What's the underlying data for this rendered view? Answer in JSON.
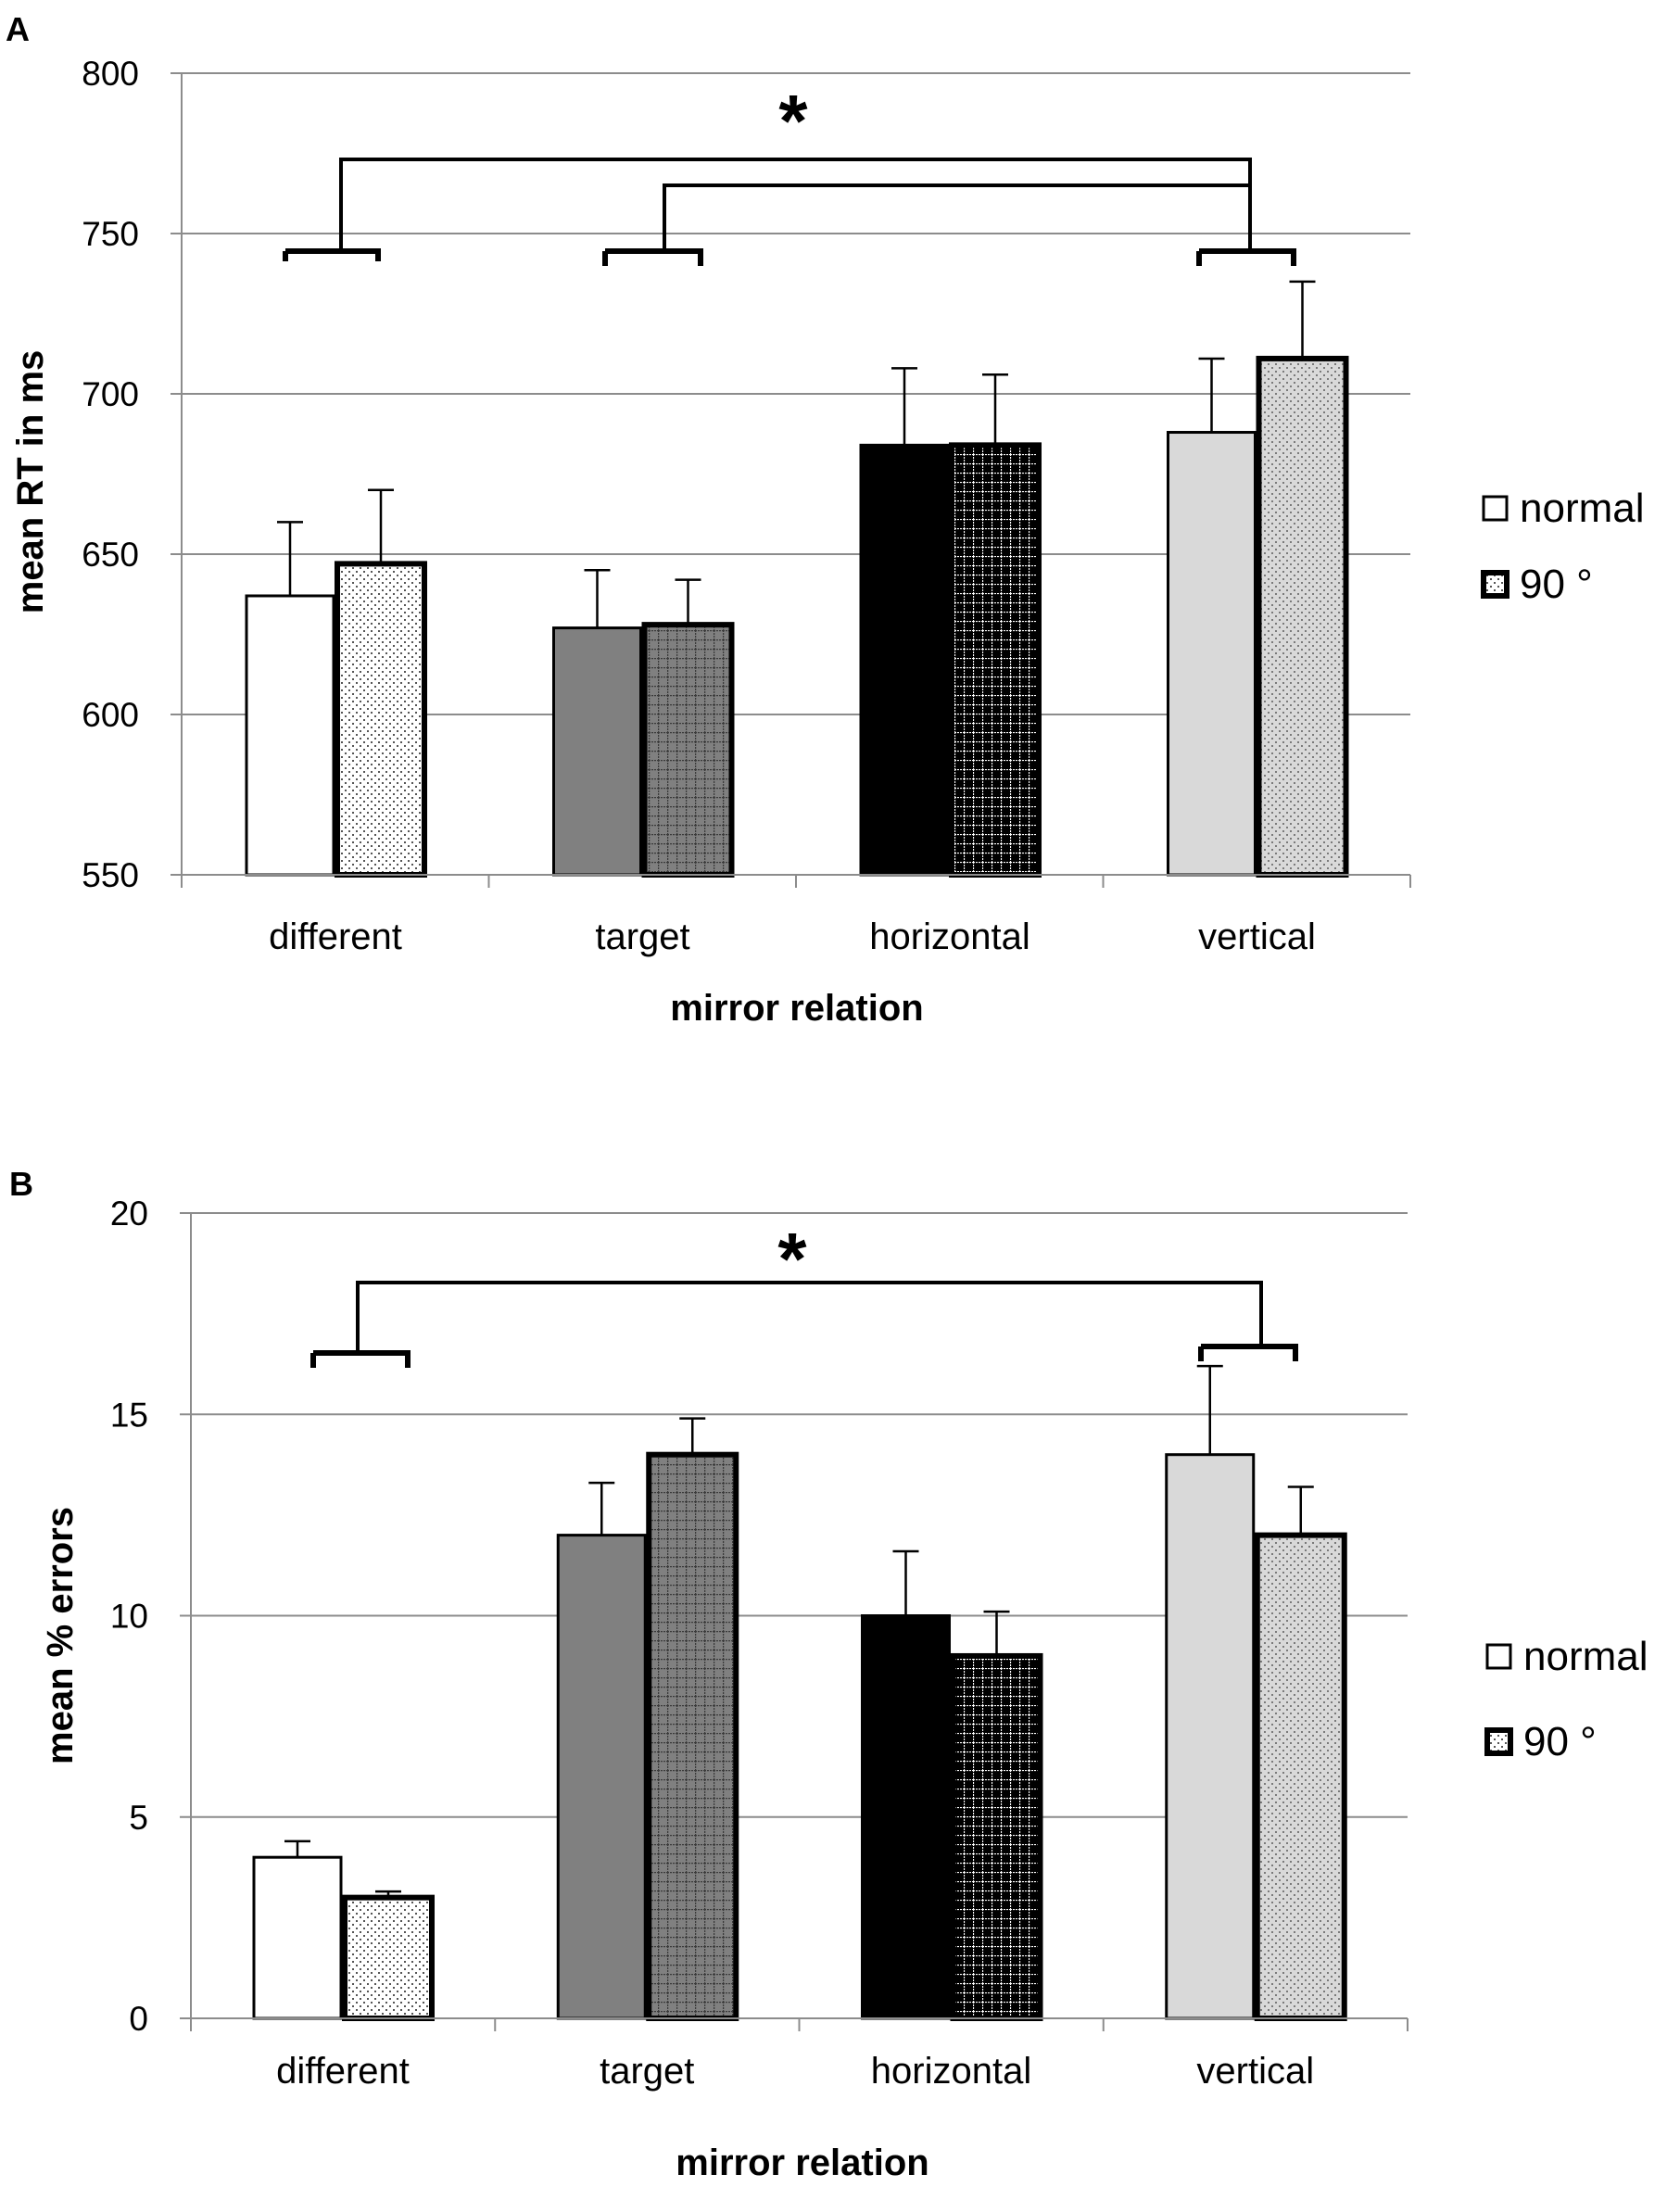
{
  "chart_data": [
    {
      "type": "bar",
      "panel_label": "A",
      "title": "",
      "categories": [
        "different",
        "target",
        "horizontal",
        "vertical"
      ],
      "category_colors": [
        "#ffffff",
        "#808080",
        "#000000",
        "#d9d9d9"
      ],
      "xlabel": "mirror relation",
      "ylabel": "mean RT in ms",
      "ylim": [
        550,
        800
      ],
      "yticks": [
        550,
        600,
        650,
        700,
        750,
        800
      ],
      "grid": true,
      "legend_position": "right",
      "series": [
        {
          "name": "normal",
          "values": [
            637,
            627,
            684,
            688
          ],
          "errors": [
            23,
            18,
            24,
            23
          ]
        },
        {
          "name": "90 °",
          "values": [
            647,
            628,
            684,
            711
          ],
          "errors": [
            23,
            14,
            22,
            24
          ]
        }
      ],
      "annotation": "*",
      "annotation_note": "bracket from different and target groups to vertical group"
    },
    {
      "type": "bar",
      "panel_label": "B",
      "title": "",
      "categories": [
        "different",
        "target",
        "horizontal",
        "vertical"
      ],
      "category_colors": [
        "#ffffff",
        "#808080",
        "#000000",
        "#d9d9d9"
      ],
      "xlabel": "mirror relation",
      "ylabel": "mean % errors",
      "ylim": [
        0,
        20
      ],
      "yticks": [
        0,
        5,
        10,
        15,
        20
      ],
      "grid": true,
      "legend_position": "right",
      "series": [
        {
          "name": "normal",
          "values": [
            4,
            12,
            10,
            14
          ],
          "errors": [
            0.4,
            1.3,
            1.6,
            2.2
          ]
        },
        {
          "name": "90 °",
          "values": [
            3,
            14,
            9,
            12
          ],
          "errors": [
            0.15,
            0.9,
            1.1,
            1.2
          ]
        }
      ],
      "annotation": "*",
      "annotation_note": "bracket from different group to vertical group"
    }
  ]
}
